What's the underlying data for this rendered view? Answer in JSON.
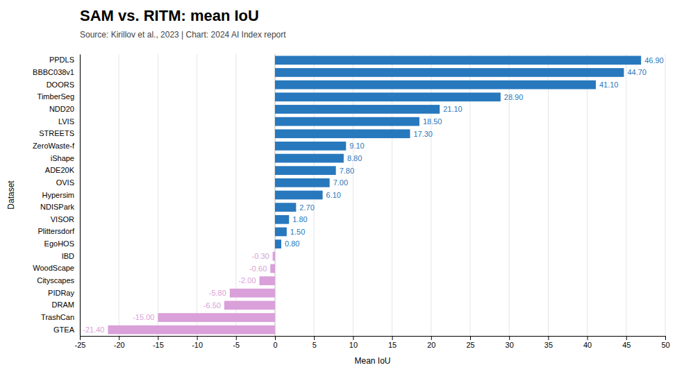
{
  "chart_data": {
    "type": "bar",
    "orientation": "horizontal",
    "title": "SAM vs. RITM: mean IoU",
    "subtitle": "Source: Kirillov et al., 2023 | Chart: 2024 AI Index report",
    "xlabel": "Mean IoU",
    "ylabel": "Dataset",
    "categories": [
      "PPDLS",
      "BBBC038v1",
      "DOORS",
      "TimberSeg",
      "NDD20",
      "LVIS",
      "STREETS",
      "ZeroWaste-f",
      "iShape",
      "ADE20K",
      "OVIS",
      "Hypersim",
      "NDISPark",
      "VISOR",
      "Plittersdorf",
      "EgoHOS",
      "IBD",
      "WoodScape",
      "Cityscapes",
      "PIDRay",
      "DRAM",
      "TrashCan",
      "GTEA"
    ],
    "values": [
      46.9,
      44.7,
      41.1,
      28.9,
      21.1,
      18.5,
      17.3,
      9.1,
      8.8,
      7.8,
      7.0,
      6.1,
      2.7,
      1.8,
      1.5,
      0.8,
      -0.3,
      -0.6,
      -2.0,
      -5.8,
      -6.5,
      -15.0,
      -21.4
    ],
    "value_labels": [
      "46.90",
      "44.70",
      "41.10",
      "28.90",
      "21.10",
      "18.50",
      "17.30",
      "9.10",
      "8.80",
      "7.80",
      "7.00",
      "6.10",
      "2.70",
      "1.80",
      "1.50",
      "0.80",
      "-0.30",
      "-0.60",
      "-2.00",
      "-5.80",
      "-6.50",
      "-15.00",
      "-21.40"
    ],
    "colors": [
      "#2878bd",
      "#2878bd",
      "#2878bd",
      "#2878bd",
      "#2878bd",
      "#2878bd",
      "#2878bd",
      "#2878bd",
      "#2878bd",
      "#2878bd",
      "#2878bd",
      "#2878bd",
      "#2878bd",
      "#2878bd",
      "#2878bd",
      "#2878bd",
      "#d9a0d9",
      "#d9a0d9",
      "#d9a0d9",
      "#d9a0d9",
      "#d9a0d9",
      "#d9a0d9",
      "#d9a0d9"
    ],
    "data_labels": true,
    "xlim": [
      -25,
      50
    ],
    "xticks": [
      -25,
      -20,
      -15,
      -10,
      -5,
      0,
      5,
      10,
      15,
      20,
      25,
      30,
      35,
      40,
      45,
      50
    ],
    "grid": true
  }
}
